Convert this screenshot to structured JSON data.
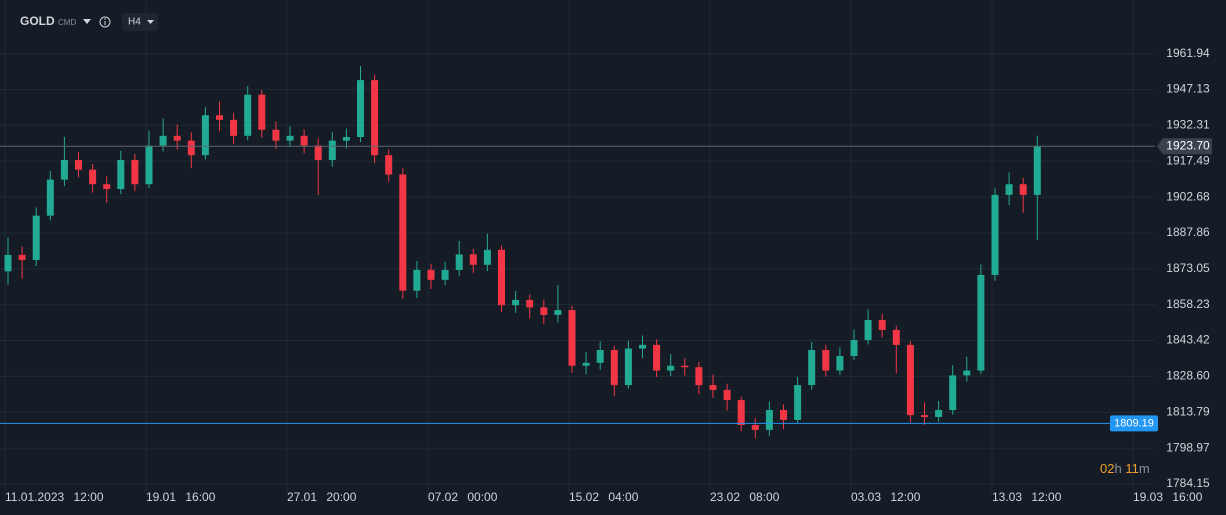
{
  "chart_data": {
    "type": "candlestick",
    "symbol": "GOLD",
    "market": "CMD",
    "timeframe": "H4",
    "x_labels": [
      "11.01.2023 12:00",
      "19.01 16:00",
      "27.01 20:00",
      "07.02 00:00",
      "15.02 04:00",
      "23.02 08:00",
      "03.03 12:00",
      "13.03 12:00",
      "19.03 16:00"
    ],
    "open": [
      1872.0,
      1878.8,
      1876.7,
      1895.0,
      1909.9,
      1918.0,
      1914.0,
      1908.0,
      1906.0,
      1918.0,
      1908.0,
      1924.0,
      1928.0,
      1926.0,
      1920.0,
      1936.5,
      1934.6,
      1928.0,
      1945.0,
      1930.5,
      1926.0,
      1928.0,
      1924.0,
      1918.0,
      1926.0,
      1927.5,
      1951.0,
      1920.0,
      1912.0,
      1864.0,
      1872.6,
      1868.5,
      1872.6,
      1879.0,
      1874.7,
      1880.9,
      1858.0,
      1860.2,
      1857.1,
      1854.0,
      1856.0,
      1833.0,
      1834.2,
      1839.5,
      1825.0,
      1840.1,
      1841.6,
      1831.0,
      1833.0,
      1832.4,
      1825.0,
      1823.0,
      1818.8,
      1808.5,
      1806.5,
      1814.7,
      1810.6,
      1825.0,
      1839.5,
      1831.0,
      1837.0,
      1843.6,
      1851.9,
      1847.8,
      1841.6,
      1812.6,
      1811.8,
      1814.7,
      1829.0,
      1831.0,
      1870.5,
      1903.6,
      1908.0,
      1903.6
    ],
    "high": [
      1886.0,
      1882.3,
      1898.4,
      1913.5,
      1927.6,
      1921.4,
      1916.3,
      1911.2,
      1921.8,
      1920.5,
      1930.2,
      1935.1,
      1932.7,
      1929.4,
      1939.8,
      1942.1,
      1937.3,
      1948.6,
      1946.9,
      1933.8,
      1931.9,
      1930.6,
      1927.0,
      1929.5,
      1931.0,
      1956.8,
      1953.2,
      1922.4,
      1914.6,
      1876.3,
      1875.2,
      1875.9,
      1884.6,
      1881.3,
      1887.5,
      1882.7,
      1863.9,
      1862.5,
      1860.3,
      1866.4,
      1857.8,
      1838.6,
      1843.0,
      1841.2,
      1843.3,
      1845.5,
      1843.9,
      1837.8,
      1836.1,
      1834.6,
      1829.4,
      1825.6,
      1820.2,
      1811.3,
      1818.2,
      1817.0,
      1828.4,
      1842.8,
      1841.7,
      1840.6,
      1847.9,
      1856.3,
      1854.4,
      1849.5,
      1843.2,
      1817.9,
      1818.5,
      1833.2,
      1836.7,
      1874.8,
      1906.3,
      1912.9,
      1910.7,
      1928.1
    ],
    "low": [
      1866.5,
      1869.0,
      1874.2,
      1893.1,
      1907.2,
      1910.8,
      1904.5,
      1900.3,
      1903.9,
      1905.1,
      1906.4,
      1921.5,
      1922.3,
      1914.6,
      1918.2,
      1929.9,
      1924.5,
      1926.1,
      1927.2,
      1922.6,
      1923.4,
      1920.8,
      1903.5,
      1915.2,
      1922.8,
      1925.4,
      1916.7,
      1909.1,
      1860.5,
      1861.0,
      1864.7,
      1866.3,
      1870.2,
      1871.4,
      1872.1,
      1855.3,
      1854.8,
      1852.6,
      1850.2,
      1850.9,
      1830.1,
      1829.5,
      1831.3,
      1820.4,
      1823.6,
      1836.2,
      1828.3,
      1828.7,
      1829.0,
      1821.3,
      1819.7,
      1814.5,
      1805.9,
      1803.0,
      1804.1,
      1806.8,
      1809.3,
      1823.1,
      1828.5,
      1829.2,
      1835.4,
      1841.8,
      1844.6,
      1829.8,
      1809.7,
      1808.6,
      1809.9,
      1812.8,
      1826.4,
      1829.6,
      1868.1,
      1899.4,
      1896.2,
      1885.0
    ],
    "close": [
      1878.8,
      1876.7,
      1895.0,
      1909.9,
      1918.0,
      1914.0,
      1908.0,
      1906.0,
      1918.0,
      1908.0,
      1924.0,
      1928.0,
      1926.0,
      1920.0,
      1936.5,
      1934.6,
      1928.0,
      1945.0,
      1930.5,
      1926.0,
      1928.0,
      1924.0,
      1918.0,
      1926.0,
      1927.5,
      1951.0,
      1920.0,
      1912.0,
      1864.0,
      1872.6,
      1868.5,
      1872.6,
      1879.0,
      1874.7,
      1880.9,
      1858.0,
      1860.2,
      1857.1,
      1854.0,
      1856.0,
      1833.0,
      1834.2,
      1839.5,
      1825.0,
      1840.1,
      1841.6,
      1831.0,
      1833.0,
      1832.4,
      1825.0,
      1823.0,
      1818.8,
      1808.5,
      1806.5,
      1814.7,
      1810.6,
      1825.0,
      1839.5,
      1831.0,
      1837.0,
      1843.6,
      1851.9,
      1847.8,
      1841.6,
      1812.6,
      1811.8,
      1814.7,
      1829.0,
      1831.0,
      1870.5,
      1903.6,
      1908.0,
      1903.6,
      1923.7
    ],
    "up_color": "#22ab94",
    "down_color": "#f23645",
    "ylim": [
      1780,
      1968
    ],
    "yticks": [
      1961.94,
      1947.13,
      1932.31,
      1917.49,
      1902.68,
      1887.86,
      1873.05,
      1858.23,
      1843.42,
      {
        "value": 1828.6,
        "label": "1828.60"
      },
      1813.79,
      1798.97,
      1784.15
    ],
    "grid": true,
    "last_price": {
      "value": 1923.7,
      "label": "1923.70"
    },
    "alert_line": {
      "value": 1809.19,
      "color": "#2196f3"
    },
    "countdown": {
      "hours": "02",
      "hours_unit": "h",
      "minutes": "11",
      "minutes_unit": "m"
    }
  }
}
